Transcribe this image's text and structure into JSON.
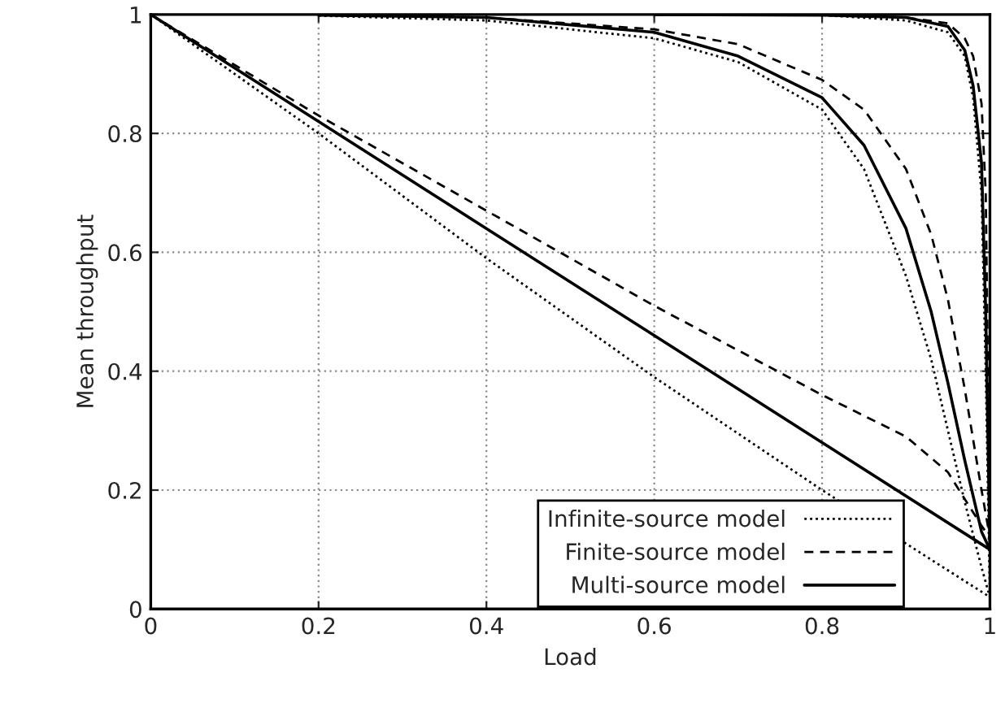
{
  "chart_data": {
    "type": "line",
    "xlabel": "Load",
    "ylabel": "Mean throughput",
    "xlim": [
      0,
      1
    ],
    "ylim": [
      0,
      1
    ],
    "xticks": [
      0,
      0.2,
      0.4,
      0.6,
      0.8,
      1
    ],
    "yticks": [
      0,
      0.2,
      0.4,
      0.6,
      0.8,
      1
    ],
    "grid": true,
    "legend": "bottom right",
    "marker": "none",
    "series": [
      {
        "name": "Infinite-source model",
        "color": "#000000",
        "line_style": "dotted",
        "x": [
          0,
          0.2,
          0.4,
          0.6,
          0.8,
          1
        ],
        "values": [
          1,
          0.8,
          0.59,
          0.39,
          0.2,
          0.02
        ]
      },
      {
        "name": "Finite-source model",
        "color": "#000000",
        "line_style": "dashed",
        "x": [
          0,
          0.2,
          0.4,
          0.6,
          0.8,
          0.9,
          0.95,
          0.99,
          1
        ],
        "values": [
          1,
          0.83,
          0.67,
          0.51,
          0.36,
          0.29,
          0.23,
          0.14,
          0.12
        ]
      },
      {
        "name": "Multi-source model",
        "color": "#000000",
        "line_style": "solid",
        "x": [
          0,
          0.2,
          0.4,
          0.6,
          0.8,
          1
        ],
        "values": [
          1,
          0.82,
          0.64,
          0.46,
          0.28,
          0.1
        ]
      },
      {
        "color": "#000000",
        "line_style": "dotted",
        "x": [
          0.2,
          0.4,
          0.6,
          0.7,
          0.8,
          0.85,
          0.9,
          0.93,
          0.95,
          0.97,
          0.99,
          1
        ],
        "values": [
          0.998,
          0.99,
          0.96,
          0.92,
          0.84,
          0.74,
          0.56,
          0.42,
          0.3,
          0.18,
          0.07,
          0.02
        ]
      },
      {
        "color": "#000000",
        "line_style": "dashed",
        "x": [
          0.2,
          0.4,
          0.6,
          0.7,
          0.8,
          0.85,
          0.9,
          0.93,
          0.95,
          0.97,
          0.99,
          1
        ],
        "values": [
          0.999,
          0.995,
          0.975,
          0.95,
          0.89,
          0.84,
          0.74,
          0.63,
          0.52,
          0.37,
          0.2,
          0.12
        ]
      },
      {
        "color": "#000000",
        "line_style": "solid",
        "x": [
          0.2,
          0.4,
          0.6,
          0.7,
          0.8,
          0.85,
          0.9,
          0.93,
          0.95,
          0.97,
          0.99,
          1
        ],
        "values": [
          0.999,
          0.995,
          0.97,
          0.93,
          0.86,
          0.78,
          0.64,
          0.5,
          0.38,
          0.25,
          0.13,
          0.1
        ]
      },
      {
        "color": "#000000",
        "line_style": "dotted",
        "x": [
          0.6,
          0.8,
          0.9,
          0.95,
          0.97,
          0.98,
          0.99,
          0.995,
          1
        ],
        "values": [
          1,
          0.999,
          0.99,
          0.97,
          0.93,
          0.86,
          0.7,
          0.4,
          0.02
        ]
      },
      {
        "color": "#000000",
        "line_style": "dashed",
        "x": [
          0.6,
          0.8,
          0.9,
          0.95,
          0.97,
          0.98,
          0.99,
          0.995,
          1
        ],
        "values": [
          1,
          0.999,
          0.995,
          0.985,
          0.96,
          0.93,
          0.85,
          0.7,
          0.12
        ]
      },
      {
        "color": "#000000",
        "line_style": "solid",
        "x": [
          0.6,
          0.8,
          0.9,
          0.95,
          0.97,
          0.98,
          0.99,
          0.995,
          1
        ],
        "values": [
          1,
          0.999,
          0.995,
          0.98,
          0.94,
          0.88,
          0.75,
          0.5,
          0.1
        ]
      }
    ]
  }
}
